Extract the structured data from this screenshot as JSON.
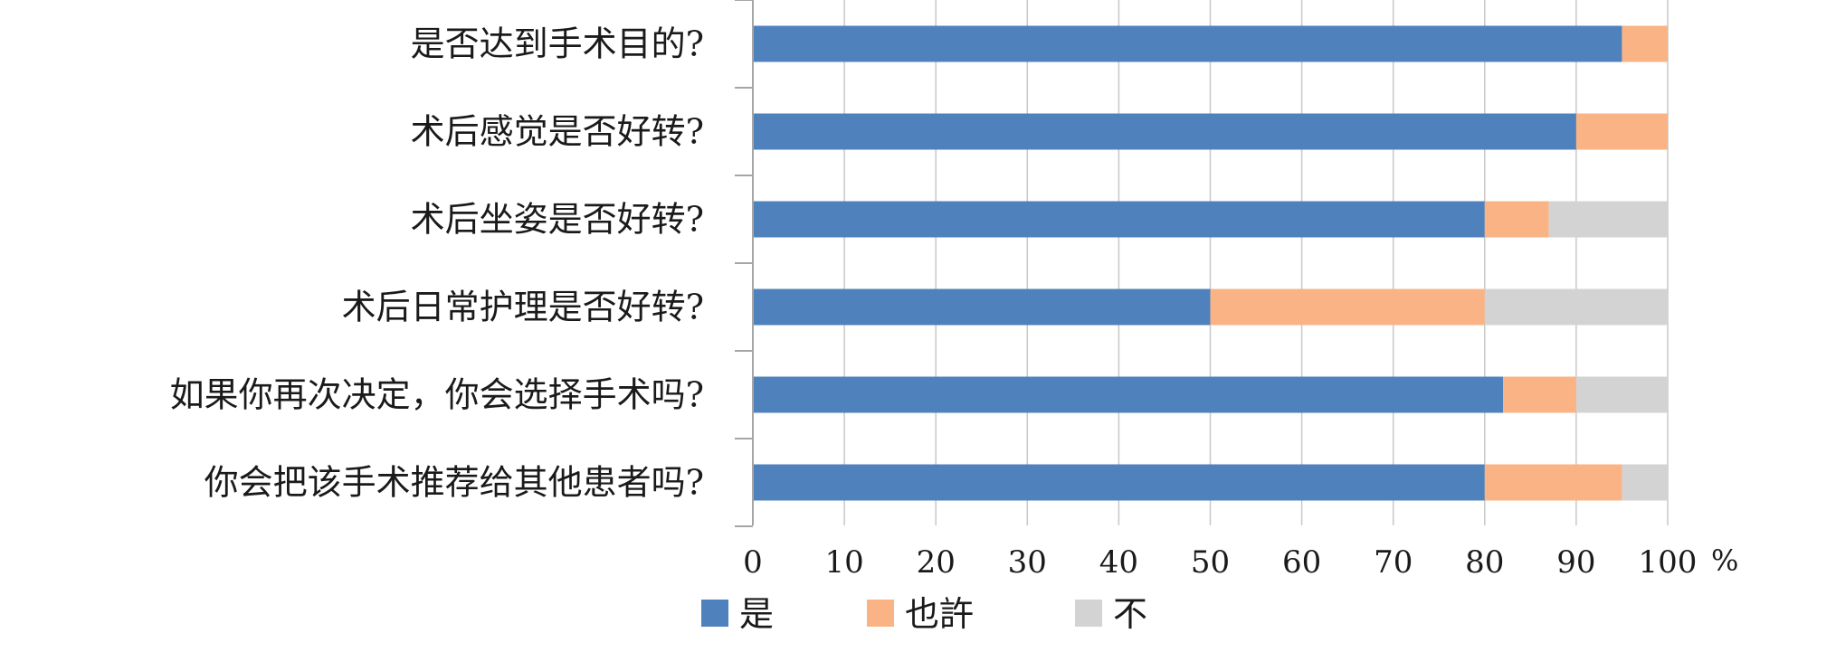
{
  "chart_data": {
    "type": "bar",
    "orientation": "horizontal",
    "stacked": true,
    "categories": [
      "是否达到手术目的?",
      "术后感觉是否好转?",
      "术后坐姿是否好转?",
      "术后日常护理是否好转?",
      "如果你再次决定，你会选择手术吗?",
      "你会把该手术推荐给其他患者吗?"
    ],
    "series": [
      {
        "name": "是",
        "color": "#4f81bd",
        "values": [
          95,
          90,
          80,
          50,
          82,
          80
        ]
      },
      {
        "name": "也許",
        "color": "#f9b384",
        "values": [
          5,
          10,
          7,
          30,
          8,
          15
        ]
      },
      {
        "name": "不",
        "color": "#d3d3d3",
        "values": [
          0,
          0,
          13,
          20,
          10,
          5
        ]
      }
    ],
    "xlim": [
      0,
      100
    ],
    "xticks": [
      "0",
      "10",
      "20",
      "30",
      "40",
      "50",
      "60",
      "70",
      "80",
      "90",
      "100"
    ],
    "xunit": "%",
    "grid": "vertical",
    "legend_position": "bottom"
  }
}
